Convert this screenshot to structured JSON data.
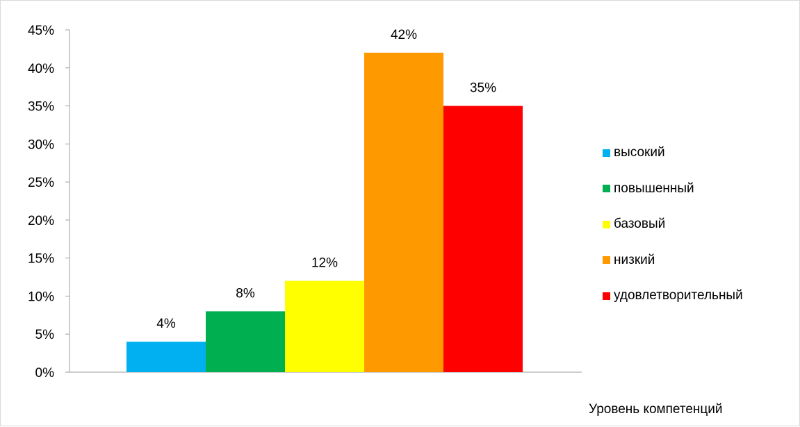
{
  "chart_data": {
    "type": "bar",
    "title": "",
    "xlabel": "Уровень компетенций",
    "ylabel": "",
    "ylim": [
      0,
      45
    ],
    "yticks": [
      "0%",
      "5%",
      "10%",
      "15%",
      "20%",
      "25%",
      "30%",
      "35%",
      "40%",
      "45%"
    ],
    "grid": false,
    "legend_position": "right",
    "series": [
      {
        "name": "высокий",
        "value": 4,
        "label": "4%",
        "color": "#00B0F0"
      },
      {
        "name": "повышенный",
        "value": 8,
        "label": "8%",
        "color": "#00B050"
      },
      {
        "name": "базовый",
        "value": 12,
        "label": "12%",
        "color": "#FFFF00"
      },
      {
        "name": "низкий",
        "value": 42,
        "label": "42%",
        "color": "#FF9900"
      },
      {
        "name": "удовлетворительный",
        "value": 35,
        "label": "35%",
        "color": "#FF0000"
      }
    ]
  }
}
